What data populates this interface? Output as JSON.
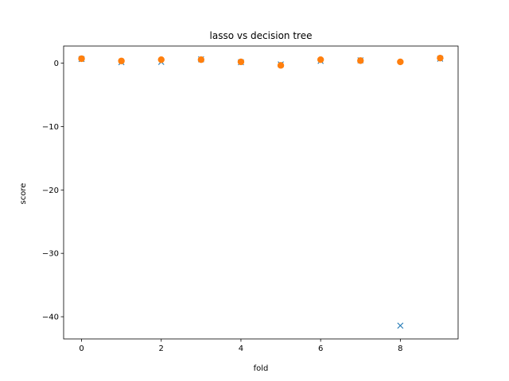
{
  "chart_data": {
    "type": "scatter",
    "title": "lasso vs decision tree",
    "xlabel": "fold",
    "ylabel": "score",
    "xlim": [
      -0.45,
      9.45
    ],
    "ylim": [
      -43.5,
      2.7
    ],
    "xticks": [
      0,
      2,
      4,
      6,
      8
    ],
    "yticks": [
      0,
      -10,
      -20,
      -30,
      -40
    ],
    "grid": false,
    "series": [
      {
        "marker": "x",
        "color": "#1f77b4",
        "x": [
          0,
          1,
          2,
          3,
          4,
          5,
          6,
          7,
          8,
          9
        ],
        "y": [
          0.65,
          0.15,
          0.2,
          0.6,
          0.15,
          -0.2,
          0.35,
          0.45,
          -41.4,
          0.7
        ]
      },
      {
        "marker": "o",
        "color": "#ff7f0e",
        "x": [
          0,
          1,
          2,
          3,
          4,
          5,
          6,
          7,
          8,
          9
        ],
        "y": [
          0.7,
          0.35,
          0.55,
          0.55,
          0.2,
          -0.35,
          0.55,
          0.4,
          0.2,
          0.8
        ]
      }
    ]
  }
}
